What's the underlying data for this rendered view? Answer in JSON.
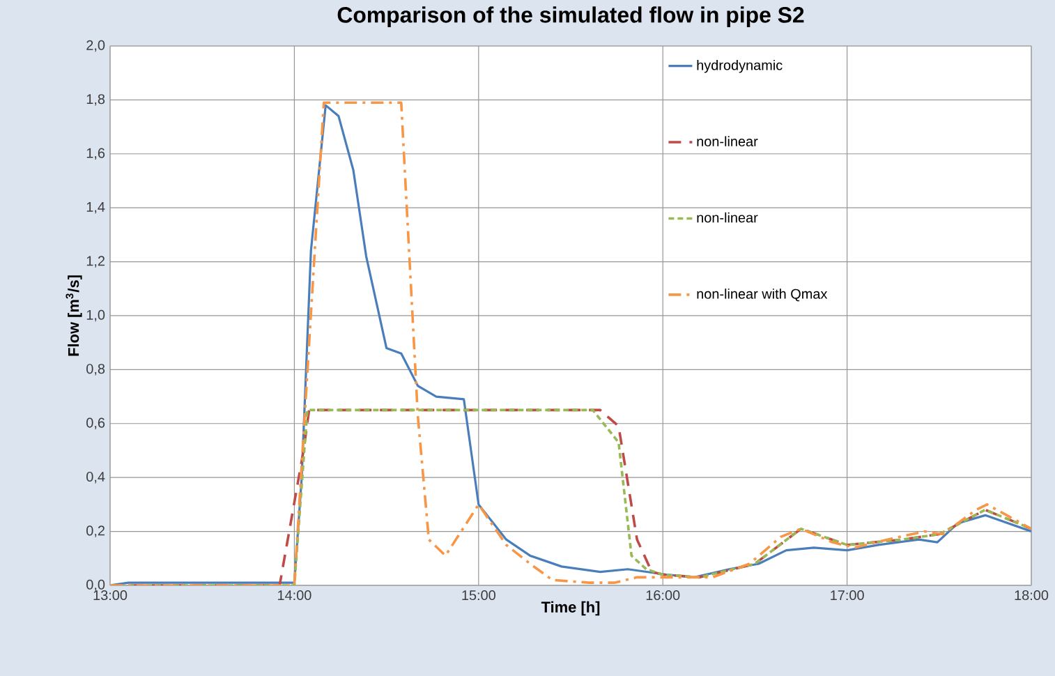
{
  "chart_data": {
    "type": "line",
    "title": "Comparison of the simulated flow in pipe S2",
    "xlabel": "Time [h]",
    "ylabel": "Flow [m$^{3}$/s]",
    "xlim": [
      13,
      18
    ],
    "ylim": [
      0,
      2
    ],
    "xticks": [
      {
        "value": 13,
        "label": "13:00"
      },
      {
        "value": 14,
        "label": "14:00"
      },
      {
        "value": 15,
        "label": "15:00"
      },
      {
        "value": 16,
        "label": "16:00"
      },
      {
        "value": 17,
        "label": "17:00"
      },
      {
        "value": 18,
        "label": "18:00"
      }
    ],
    "yticks": [
      {
        "value": 0,
        "label": "0,0"
      },
      {
        "value": 0.2,
        "label": "0,2"
      },
      {
        "value": 0.4,
        "label": "0,4"
      },
      {
        "value": 0.6,
        "label": "0,6"
      },
      {
        "value": 0.8,
        "label": "0,8"
      },
      {
        "value": 1.0,
        "label": "1,0"
      },
      {
        "value": 1.2,
        "label": "1,2"
      },
      {
        "value": 1.4,
        "label": "1,4"
      },
      {
        "value": 1.6,
        "label": "1,6"
      },
      {
        "value": 1.8,
        "label": "1,8"
      },
      {
        "value": 2.0,
        "label": "2,0"
      }
    ],
    "grid": true,
    "legend": "top right",
    "marker": "none",
    "series": [
      {
        "name": "hydrodynamic",
        "color": "#4a7ebb",
        "line_style": "solid",
        "x": [
          13.0,
          13.1,
          14.0,
          14.04,
          14.09,
          14.17,
          14.24,
          14.32,
          14.39,
          14.5,
          14.58,
          14.67,
          14.77,
          14.92,
          15.0,
          15.15,
          15.28,
          15.45,
          15.66,
          15.81,
          16.02,
          16.17,
          16.36,
          16.52,
          16.67,
          16.82,
          17.0,
          17.17,
          17.39,
          17.49,
          17.6,
          17.75,
          18.0
        ],
        "values": [
          0.0,
          0.01,
          0.01,
          0.4,
          1.24,
          1.78,
          1.74,
          1.54,
          1.22,
          0.88,
          0.86,
          0.74,
          0.7,
          0.69,
          0.3,
          0.17,
          0.11,
          0.07,
          0.05,
          0.06,
          0.04,
          0.03,
          0.06,
          0.08,
          0.13,
          0.14,
          0.13,
          0.15,
          0.17,
          0.16,
          0.23,
          0.26,
          0.2
        ]
      },
      {
        "name": "non-linear",
        "color": "#be4b48",
        "line_style": "dashed",
        "x": [
          13.0,
          13.92,
          14.05,
          14.08,
          15.66,
          15.76,
          15.86,
          15.94,
          16.0,
          16.2,
          16.5,
          16.75,
          17.0,
          17.3,
          17.5,
          17.75,
          18.0
        ],
        "values": [
          0.0,
          0.0,
          0.5,
          0.65,
          0.65,
          0.59,
          0.17,
          0.05,
          0.04,
          0.03,
          0.08,
          0.21,
          0.15,
          0.17,
          0.19,
          0.28,
          0.21
        ]
      },
      {
        "name": "non-linear",
        "color": "#98b954",
        "line_style": "dotted",
        "x": [
          13.0,
          14.0,
          14.07,
          15.62,
          15.76,
          15.83,
          15.91,
          16.0,
          16.2,
          16.5,
          16.75,
          17.0,
          17.3,
          17.5,
          17.75,
          18.0
        ],
        "values": [
          0.0,
          0.0,
          0.65,
          0.65,
          0.53,
          0.11,
          0.06,
          0.04,
          0.03,
          0.08,
          0.21,
          0.15,
          0.17,
          0.19,
          0.28,
          0.21
        ]
      },
      {
        "name": "non-linear with Qmax",
        "color": "#f79646",
        "line_style": "dashdot",
        "x": [
          13.0,
          14.0,
          14.16,
          14.58,
          14.67,
          14.73,
          14.82,
          15.0,
          15.15,
          15.28,
          15.4,
          15.6,
          15.74,
          15.86,
          16.0,
          16.27,
          16.47,
          16.64,
          16.75,
          16.92,
          17.04,
          17.22,
          17.42,
          17.52,
          17.7,
          17.76,
          18.0
        ],
        "values": [
          0.0,
          0.0,
          1.79,
          1.79,
          0.63,
          0.17,
          0.11,
          0.3,
          0.15,
          0.08,
          0.02,
          0.01,
          0.01,
          0.03,
          0.03,
          0.03,
          0.08,
          0.18,
          0.21,
          0.16,
          0.14,
          0.17,
          0.2,
          0.19,
          0.28,
          0.3,
          0.21
        ]
      }
    ]
  }
}
